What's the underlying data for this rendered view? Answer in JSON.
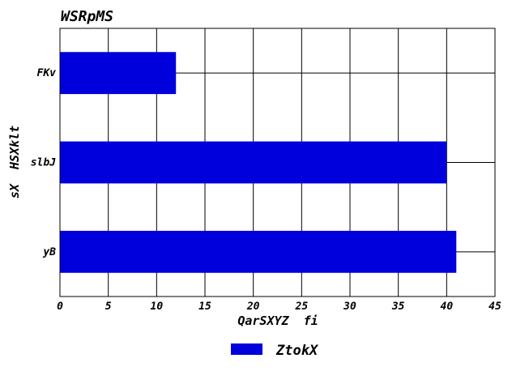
{
  "chart_data": {
    "type": "bar",
    "orientation": "horizontal",
    "title": "WSRpMS",
    "xlabel": "QarSXYZ  fi",
    "ylabel": "sX  HSXklt",
    "categories": [
      "FKv",
      "slbJ",
      "yB"
    ],
    "series": [
      {
        "name": "ZtokX",
        "values": [
          12,
          40,
          41
        ],
        "color": "#0000dd"
      }
    ],
    "xlim": [
      0,
      45
    ],
    "xticks": [
      0,
      5,
      10,
      15,
      20,
      25,
      30,
      35,
      40,
      45
    ],
    "grid": true,
    "legend_position": "bottom-center"
  }
}
